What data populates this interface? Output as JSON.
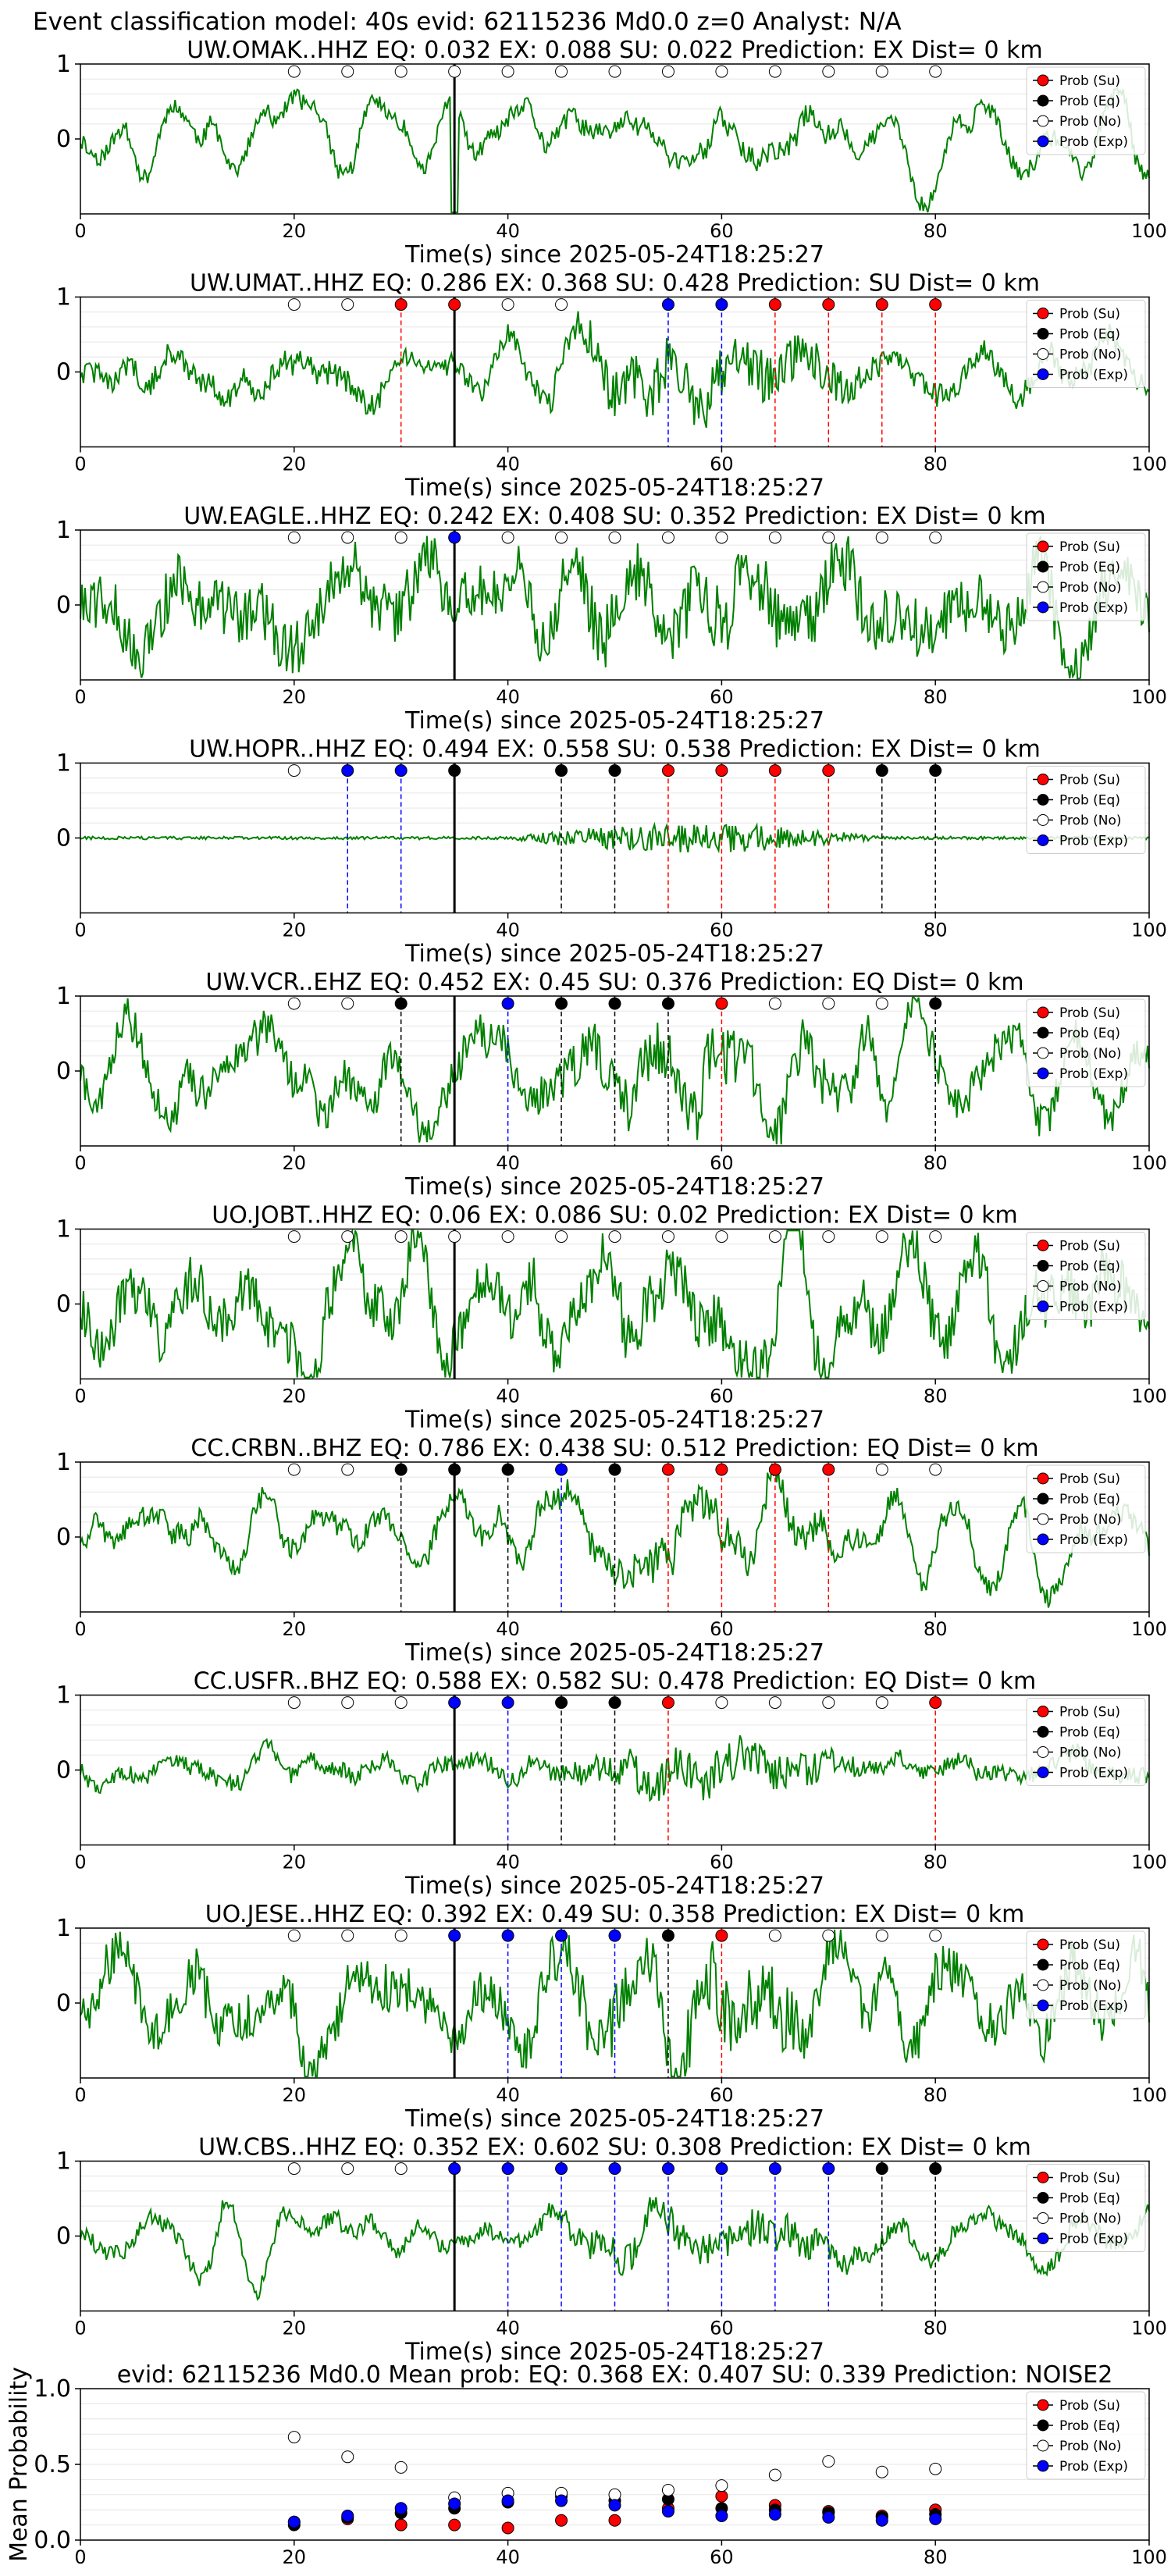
{
  "suptitle": "Event classification model: 40s evid: 62115236 Md0.0 z=0 Analyst: N/A",
  "colors": {
    "waveform": "#008000",
    "su": "#ff0000",
    "eq": "#000000",
    "no": "#ffffff",
    "exp": "#0000ff",
    "pick_line": "#000000"
  },
  "legend": [
    "Prob (Su)",
    "Prob (Eq)",
    "Prob (No)",
    "Prob (Exp)"
  ],
  "chart_data": [
    {
      "type": "line",
      "title": "UW.OMAK..HHZ   EQ: 0.032  EX: 0.088  SU: 0.022   Prediction: EX    Dist= 0 km",
      "xlabel": "Time(s) since 2025-05-24T18:25:27",
      "xlim": [
        0,
        100
      ],
      "ylim": [
        -1,
        1
      ],
      "xticks": [
        "0",
        "20",
        "40",
        "60",
        "80",
        "100"
      ],
      "yticks": [
        "0",
        "1"
      ],
      "pick_time": 35,
      "points": [
        {
          "x": 20,
          "c": "no"
        },
        {
          "x": 25,
          "c": "no"
        },
        {
          "x": 30,
          "c": "no"
        },
        {
          "x": 35,
          "c": "no"
        },
        {
          "x": 40,
          "c": "no"
        },
        {
          "x": 45,
          "c": "no"
        },
        {
          "x": 50,
          "c": "no"
        },
        {
          "x": 55,
          "c": "no"
        },
        {
          "x": 60,
          "c": "no"
        },
        {
          "x": 65,
          "c": "no"
        },
        {
          "x": 70,
          "c": "no"
        },
        {
          "x": 75,
          "c": "no"
        },
        {
          "x": 80,
          "c": "no"
        }
      ]
    },
    {
      "type": "line",
      "title": "UW.UMAT..HHZ   EQ: 0.286  EX: 0.368  SU: 0.428   Prediction: SU    Dist= 0 km",
      "xlabel": "Time(s) since 2025-05-24T18:25:27",
      "xlim": [
        0,
        100
      ],
      "ylim": [
        -1,
        1
      ],
      "xticks": [
        "0",
        "20",
        "40",
        "60",
        "80",
        "100"
      ],
      "yticks": [
        "0",
        "1"
      ],
      "pick_time": 35,
      "points": [
        {
          "x": 20,
          "c": "no"
        },
        {
          "x": 25,
          "c": "no"
        },
        {
          "x": 30,
          "c": "su"
        },
        {
          "x": 35,
          "c": "su"
        },
        {
          "x": 40,
          "c": "no"
        },
        {
          "x": 45,
          "c": "no"
        },
        {
          "x": 55,
          "c": "exp"
        },
        {
          "x": 60,
          "c": "exp"
        },
        {
          "x": 65,
          "c": "su"
        },
        {
          "x": 70,
          "c": "su"
        },
        {
          "x": 75,
          "c": "su"
        },
        {
          "x": 80,
          "c": "su"
        }
      ]
    },
    {
      "type": "line",
      "title": "UW.EAGLE..HHZ   EQ: 0.242  EX: 0.408  SU: 0.352   Prediction: EX    Dist= 0 km",
      "xlabel": "Time(s) since 2025-05-24T18:25:27",
      "xlim": [
        0,
        100
      ],
      "ylim": [
        -1,
        1
      ],
      "xticks": [
        "0",
        "20",
        "40",
        "60",
        "80",
        "100"
      ],
      "yticks": [
        "0",
        "1"
      ],
      "pick_time": 35,
      "points": [
        {
          "x": 20,
          "c": "no"
        },
        {
          "x": 25,
          "c": "no"
        },
        {
          "x": 30,
          "c": "no"
        },
        {
          "x": 35,
          "c": "exp"
        },
        {
          "x": 40,
          "c": "no"
        },
        {
          "x": 45,
          "c": "no"
        },
        {
          "x": 50,
          "c": "no"
        },
        {
          "x": 55,
          "c": "no"
        },
        {
          "x": 60,
          "c": "no"
        },
        {
          "x": 65,
          "c": "no"
        },
        {
          "x": 70,
          "c": "no"
        },
        {
          "x": 75,
          "c": "no"
        },
        {
          "x": 80,
          "c": "no"
        }
      ]
    },
    {
      "type": "line",
      "title": "UW.HOPR..HHZ   EQ: 0.494  EX: 0.558  SU: 0.538   Prediction: EX    Dist= 0 km",
      "xlabel": "Time(s) since 2025-05-24T18:25:27",
      "xlim": [
        0,
        100
      ],
      "ylim": [
        -1,
        1
      ],
      "xticks": [
        "0",
        "20",
        "40",
        "60",
        "80",
        "100"
      ],
      "yticks": [
        "0",
        "1"
      ],
      "pick_time": 35,
      "points": [
        {
          "x": 20,
          "c": "no"
        },
        {
          "x": 25,
          "c": "exp"
        },
        {
          "x": 30,
          "c": "exp"
        },
        {
          "x": 35,
          "c": "eq"
        },
        {
          "x": 45,
          "c": "eq"
        },
        {
          "x": 50,
          "c": "eq"
        },
        {
          "x": 55,
          "c": "su"
        },
        {
          "x": 60,
          "c": "su"
        },
        {
          "x": 65,
          "c": "su"
        },
        {
          "x": 70,
          "c": "su"
        },
        {
          "x": 75,
          "c": "eq"
        },
        {
          "x": 80,
          "c": "eq"
        }
      ]
    },
    {
      "type": "line",
      "title": "UW.VCR..EHZ   EQ: 0.452  EX: 0.45  SU: 0.376   Prediction: EQ    Dist= 0 km",
      "xlabel": "Time(s) since 2025-05-24T18:25:27",
      "xlim": [
        0,
        100
      ],
      "ylim": [
        -1,
        1
      ],
      "xticks": [
        "0",
        "20",
        "40",
        "60",
        "80",
        "100"
      ],
      "yticks": [
        "0",
        "1"
      ],
      "pick_time": 35,
      "points": [
        {
          "x": 20,
          "c": "no"
        },
        {
          "x": 25,
          "c": "no"
        },
        {
          "x": 30,
          "c": "eq"
        },
        {
          "x": 40,
          "c": "exp"
        },
        {
          "x": 45,
          "c": "eq"
        },
        {
          "x": 50,
          "c": "eq"
        },
        {
          "x": 55,
          "c": "eq"
        },
        {
          "x": 60,
          "c": "su"
        },
        {
          "x": 65,
          "c": "no"
        },
        {
          "x": 70,
          "c": "no"
        },
        {
          "x": 75,
          "c": "no"
        },
        {
          "x": 80,
          "c": "eq"
        }
      ]
    },
    {
      "type": "line",
      "title": "UO.JOBT..HHZ   EQ: 0.06  EX: 0.086  SU: 0.02   Prediction: EX    Dist= 0 km",
      "xlabel": "Time(s) since 2025-05-24T18:25:27",
      "xlim": [
        0,
        100
      ],
      "ylim": [
        -1,
        1
      ],
      "xticks": [
        "0",
        "20",
        "40",
        "60",
        "80",
        "100"
      ],
      "yticks": [
        "0",
        "1"
      ],
      "pick_time": 35,
      "points": [
        {
          "x": 20,
          "c": "no"
        },
        {
          "x": 25,
          "c": "no"
        },
        {
          "x": 30,
          "c": "no"
        },
        {
          "x": 35,
          "c": "no"
        },
        {
          "x": 40,
          "c": "no"
        },
        {
          "x": 45,
          "c": "no"
        },
        {
          "x": 50,
          "c": "no"
        },
        {
          "x": 55,
          "c": "no"
        },
        {
          "x": 60,
          "c": "no"
        },
        {
          "x": 65,
          "c": "no"
        },
        {
          "x": 70,
          "c": "no"
        },
        {
          "x": 75,
          "c": "no"
        },
        {
          "x": 80,
          "c": "no"
        }
      ]
    },
    {
      "type": "line",
      "title": "CC.CRBN..BHZ   EQ: 0.786  EX: 0.438  SU: 0.512   Prediction: EQ    Dist= 0 km",
      "xlabel": "Time(s) since 2025-05-24T18:25:27",
      "xlim": [
        0,
        100
      ],
      "ylim": [
        -1,
        1
      ],
      "xticks": [
        "0",
        "20",
        "40",
        "60",
        "80",
        "100"
      ],
      "yticks": [
        "0",
        "1"
      ],
      "pick_time": 35,
      "points": [
        {
          "x": 20,
          "c": "no"
        },
        {
          "x": 25,
          "c": "no"
        },
        {
          "x": 30,
          "c": "eq"
        },
        {
          "x": 35,
          "c": "eq"
        },
        {
          "x": 40,
          "c": "eq"
        },
        {
          "x": 45,
          "c": "exp"
        },
        {
          "x": 50,
          "c": "eq"
        },
        {
          "x": 55,
          "c": "su"
        },
        {
          "x": 60,
          "c": "su"
        },
        {
          "x": 65,
          "c": "su"
        },
        {
          "x": 70,
          "c": "su"
        },
        {
          "x": 75,
          "c": "no"
        },
        {
          "x": 80,
          "c": "no"
        }
      ]
    },
    {
      "type": "line",
      "title": "CC.USFR..BHZ   EQ: 0.588  EX: 0.582  SU: 0.478   Prediction: EQ    Dist= 0 km",
      "xlabel": "Time(s) since 2025-05-24T18:25:27",
      "xlim": [
        0,
        100
      ],
      "ylim": [
        -1,
        1
      ],
      "xticks": [
        "0",
        "20",
        "40",
        "60",
        "80",
        "100"
      ],
      "yticks": [
        "0",
        "1"
      ],
      "pick_time": 35,
      "points": [
        {
          "x": 20,
          "c": "no"
        },
        {
          "x": 25,
          "c": "no"
        },
        {
          "x": 30,
          "c": "no"
        },
        {
          "x": 35,
          "c": "exp"
        },
        {
          "x": 40,
          "c": "exp"
        },
        {
          "x": 45,
          "c": "eq"
        },
        {
          "x": 50,
          "c": "eq"
        },
        {
          "x": 55,
          "c": "su"
        },
        {
          "x": 60,
          "c": "no"
        },
        {
          "x": 65,
          "c": "no"
        },
        {
          "x": 70,
          "c": "no"
        },
        {
          "x": 75,
          "c": "no"
        },
        {
          "x": 80,
          "c": "su"
        }
      ]
    },
    {
      "type": "line",
      "title": "UO.JESE..HHZ   EQ: 0.392  EX: 0.49  SU: 0.358   Prediction: EX    Dist= 0 km",
      "xlabel": "Time(s) since 2025-05-24T18:25:27",
      "xlim": [
        0,
        100
      ],
      "ylim": [
        -1,
        1
      ],
      "xticks": [
        "0",
        "20",
        "40",
        "60",
        "80",
        "100"
      ],
      "yticks": [
        "0",
        "1"
      ],
      "pick_time": 35,
      "points": [
        {
          "x": 20,
          "c": "no"
        },
        {
          "x": 25,
          "c": "no"
        },
        {
          "x": 30,
          "c": "no"
        },
        {
          "x": 35,
          "c": "exp"
        },
        {
          "x": 40,
          "c": "exp"
        },
        {
          "x": 45,
          "c": "exp"
        },
        {
          "x": 50,
          "c": "exp"
        },
        {
          "x": 55,
          "c": "eq"
        },
        {
          "x": 60,
          "c": "su"
        },
        {
          "x": 65,
          "c": "no"
        },
        {
          "x": 70,
          "c": "no"
        },
        {
          "x": 75,
          "c": "no"
        },
        {
          "x": 80,
          "c": "no"
        }
      ]
    },
    {
      "type": "line",
      "title": "UW.CBS..HHZ   EQ: 0.352  EX: 0.602  SU: 0.308   Prediction: EX    Dist= 0 km",
      "xlabel": "Time(s) since 2025-05-24T18:25:27",
      "xlim": [
        0,
        100
      ],
      "ylim": [
        -1,
        1
      ],
      "xticks": [
        "0",
        "20",
        "40",
        "60",
        "80",
        "100"
      ],
      "yticks": [
        "0",
        "1"
      ],
      "pick_time": 35,
      "points": [
        {
          "x": 20,
          "c": "no"
        },
        {
          "x": 25,
          "c": "no"
        },
        {
          "x": 30,
          "c": "no"
        },
        {
          "x": 35,
          "c": "exp"
        },
        {
          "x": 40,
          "c": "exp"
        },
        {
          "x": 45,
          "c": "exp"
        },
        {
          "x": 50,
          "c": "exp"
        },
        {
          "x": 55,
          "c": "exp"
        },
        {
          "x": 60,
          "c": "exp"
        },
        {
          "x": 65,
          "c": "exp"
        },
        {
          "x": 70,
          "c": "exp"
        },
        {
          "x": 75,
          "c": "eq"
        },
        {
          "x": 80,
          "c": "eq"
        }
      ]
    },
    {
      "type": "scatter",
      "title": "evid: 62115236  Md0.0   Mean prob:   EQ: 0.368  EX: 0.407  SU: 0.339   Prediction: NOISE2",
      "ylabel": "Mean Probability",
      "xlim": [
        0,
        100
      ],
      "ylim": [
        0,
        1
      ],
      "xticks": [
        "0",
        "20",
        "40",
        "60",
        "80",
        "100"
      ],
      "yticks": [
        "0.0",
        "0.5",
        "1.0"
      ],
      "x": [
        20,
        25,
        30,
        35,
        40,
        45,
        50,
        55,
        60,
        65,
        70,
        75,
        80
      ],
      "series": [
        {
          "name": "Prob (Su)",
          "key": "su",
          "values": [
            0.12,
            0.14,
            0.1,
            0.1,
            0.08,
            0.13,
            0.13,
            0.21,
            0.29,
            0.23,
            0.19,
            0.16,
            0.2
          ]
        },
        {
          "name": "Prob (Eq)",
          "key": "eq",
          "values": [
            0.1,
            0.15,
            0.18,
            0.21,
            0.25,
            0.29,
            0.26,
            0.27,
            0.21,
            0.2,
            0.18,
            0.15,
            0.17
          ]
        },
        {
          "name": "Prob (No)",
          "key": "no",
          "values": [
            0.68,
            0.55,
            0.48,
            0.28,
            0.31,
            0.31,
            0.3,
            0.33,
            0.36,
            0.43,
            0.52,
            0.45,
            0.47
          ]
        },
        {
          "name": "Prob (Exp)",
          "key": "exp",
          "values": [
            0.12,
            0.16,
            0.21,
            0.24,
            0.26,
            0.26,
            0.23,
            0.19,
            0.16,
            0.17,
            0.15,
            0.13,
            0.14
          ]
        }
      ]
    }
  ]
}
